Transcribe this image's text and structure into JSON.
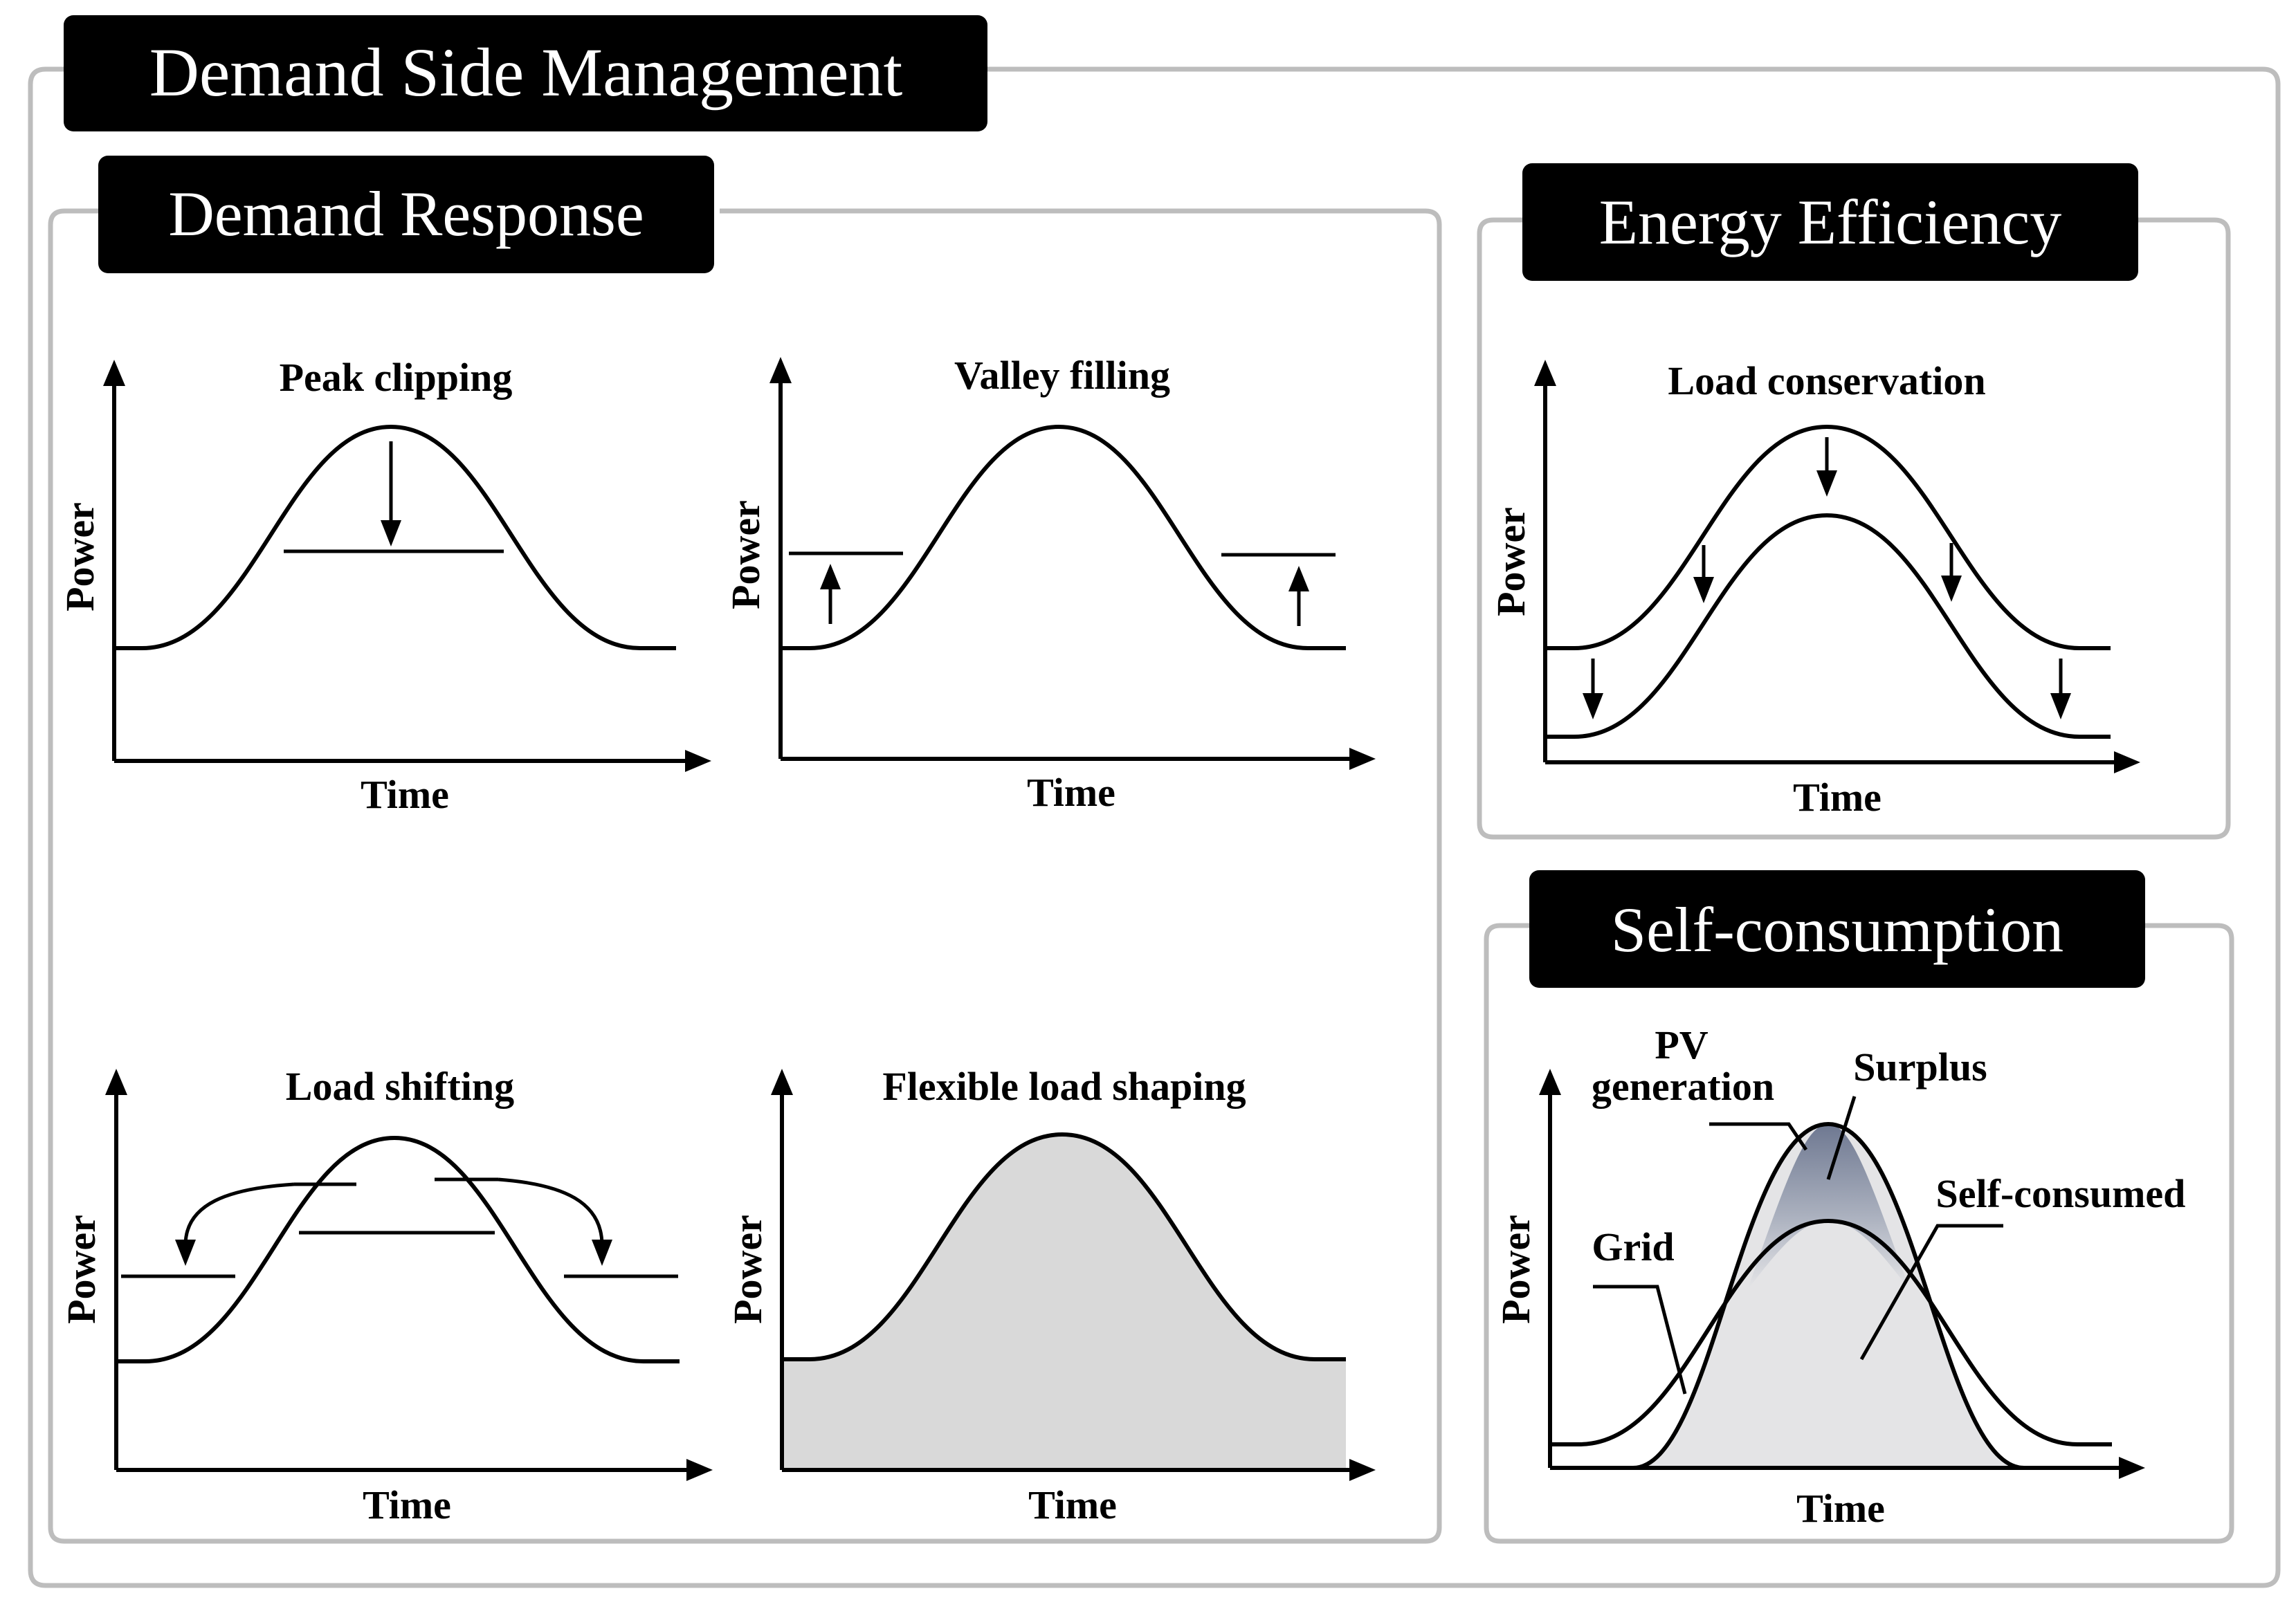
{
  "title": "Demand Side Management",
  "sections": {
    "demand_response": {
      "title": "Demand Response"
    },
    "energy_efficiency": {
      "title": "Energy Efficiency"
    },
    "self_consumption": {
      "title": "Self-consumption"
    }
  },
  "axes": {
    "x_label": "Time",
    "y_label": "Power"
  },
  "charts": {
    "peak_clipping": {
      "title": "Peak clipping"
    },
    "valley_filling": {
      "title": "Valley filling"
    },
    "load_shifting": {
      "title": "Load shifting"
    },
    "flexible_load_shaping": {
      "title": "Flexible load shaping"
    },
    "load_conservation": {
      "title": "Load conservation"
    },
    "self_consumption": {
      "labels": {
        "pv_line1": "PV",
        "pv_line2": "generation",
        "surplus": "Surplus",
        "self_consumed": "Self-consumed",
        "grid": "Grid"
      }
    }
  },
  "colors": {
    "title_bg": "#000000",
    "title_fg": "#ffffff",
    "frame": "#bdbdbd",
    "fill_light": "#d9d9d9",
    "surplus_dark": "#7a8296"
  }
}
